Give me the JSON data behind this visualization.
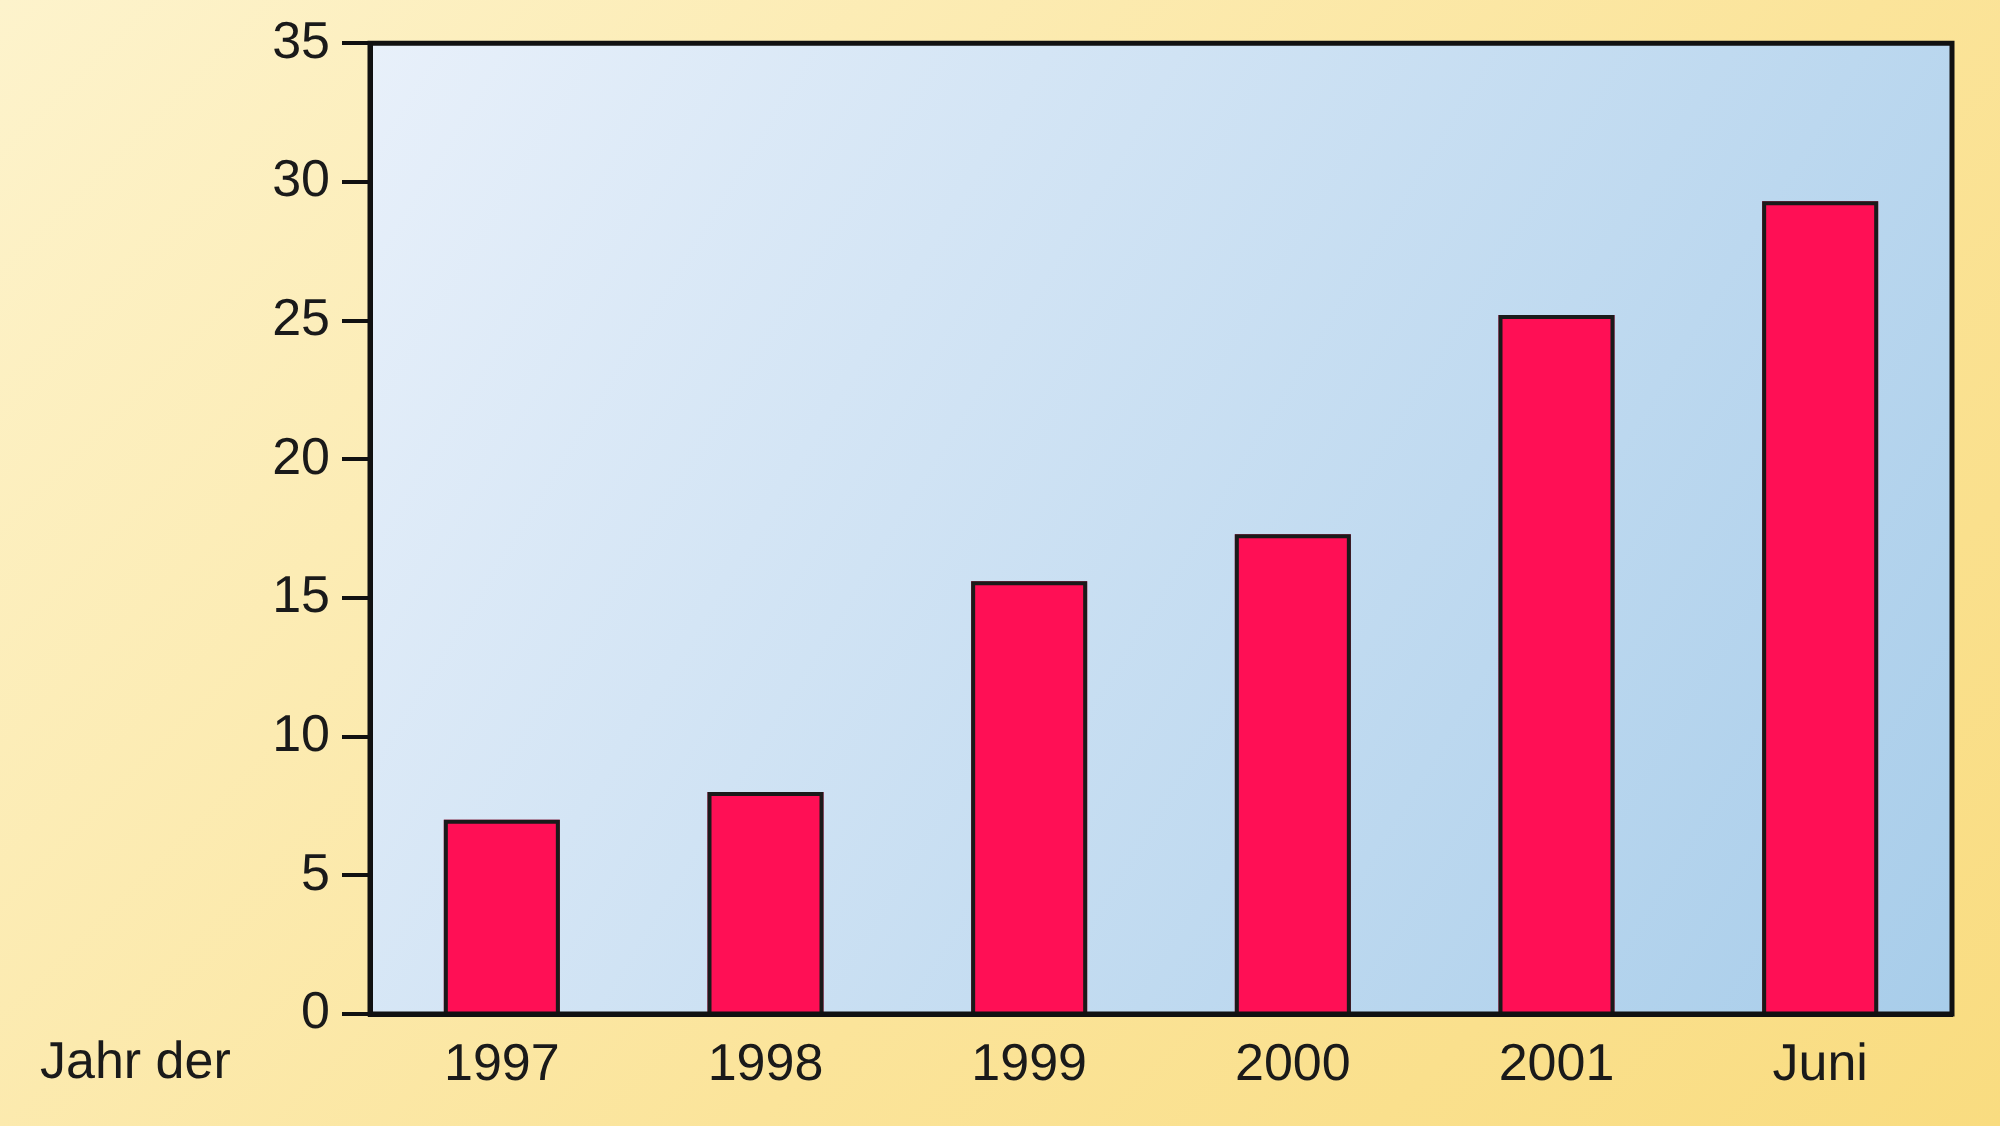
{
  "chart_data": {
    "type": "bar",
    "xlabel": "Jahr der",
    "categories": [
      "1997",
      "1998",
      "1999",
      "2000",
      "2001",
      "Juni"
    ],
    "values": [
      7,
      8,
      15.6,
      17.3,
      25.2,
      29.3
    ],
    "color": "#ff0f55",
    "ylim": [
      0,
      35
    ],
    "yticks": [
      0,
      5,
      10,
      15,
      20,
      25,
      30,
      35
    ]
  }
}
